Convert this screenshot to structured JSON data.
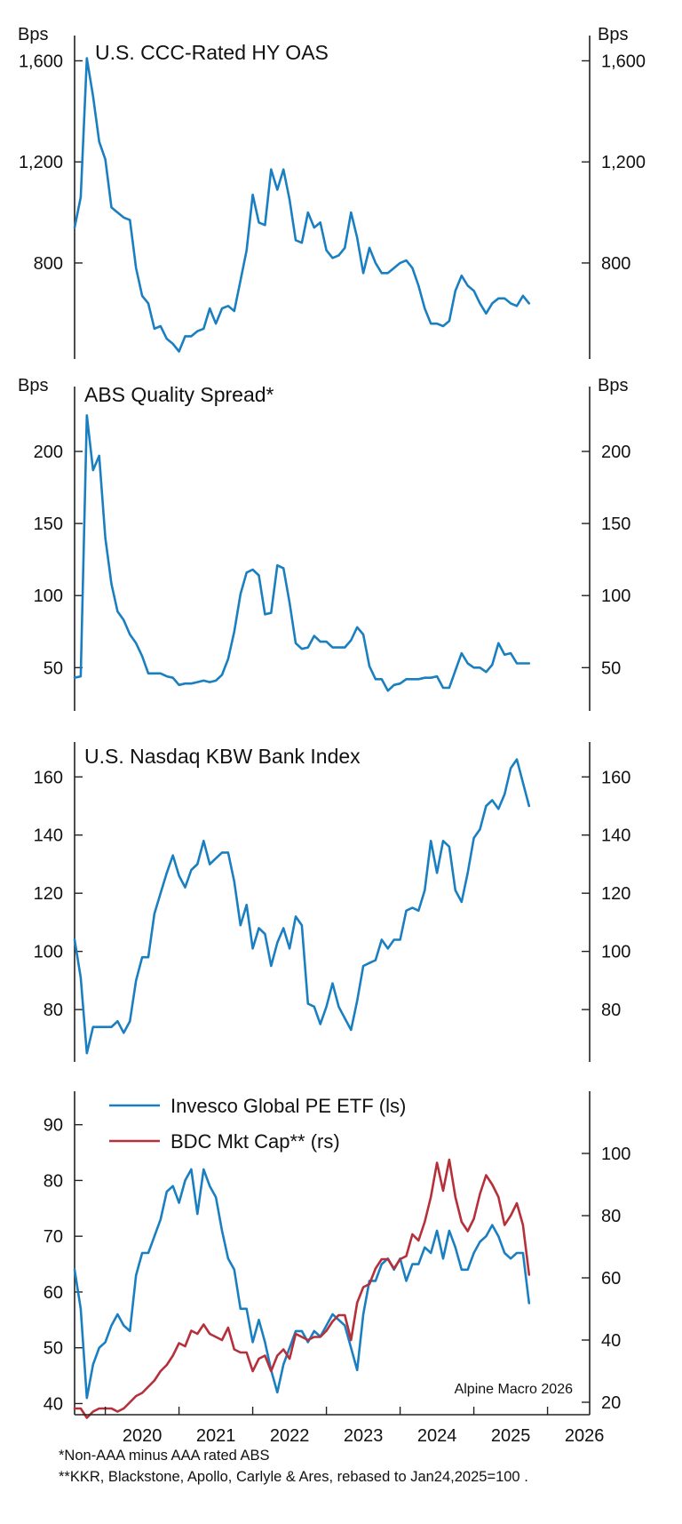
{
  "colors": {
    "blue": "#1a7fc1",
    "red": "#b5303a",
    "axis": "#222222"
  },
  "x_ticks": [
    "2020",
    "2021",
    "2022",
    "2023",
    "2024",
    "2025",
    "2026"
  ],
  "notes": {
    "note1": "*Non-AAA minus AAA rated ABS",
    "note2": "**KKR, Blackstone, Apollo, Carlyle & Ares, rebased to Jan24,2025=100 ."
  },
  "chart_data": [
    {
      "type": "line",
      "title": "U.S. CCC-Rated HY OAS",
      "unit_left": "Bps",
      "unit_right": "Bps",
      "ylim": [
        420,
        1700
      ],
      "yticks": [
        800,
        1200,
        1600
      ],
      "ytick_labels": [
        "800",
        "1,200",
        "1,600"
      ],
      "x_start": "2019-08",
      "series": [
        {
          "color": "blue",
          "values": [
            940,
            1060,
            1610,
            1460,
            1280,
            1210,
            1020,
            1000,
            980,
            970,
            780,
            670,
            640,
            540,
            550,
            500,
            480,
            450,
            510,
            510,
            530,
            540,
            620,
            560,
            620,
            630,
            610,
            730,
            850,
            1070,
            960,
            950,
            1170,
            1090,
            1170,
            1050,
            890,
            880,
            1000,
            940,
            960,
            850,
            820,
            830,
            860,
            1000,
            900,
            760,
            860,
            800,
            760,
            760,
            780,
            800,
            810,
            780,
            710,
            620,
            560,
            560,
            550,
            570,
            690,
            750,
            710,
            690,
            640,
            600,
            640,
            660,
            660,
            640,
            630,
            670,
            640
          ]
        }
      ]
    },
    {
      "type": "line",
      "title": "ABS Quality Spread*",
      "unit_left": "Bps",
      "unit_right": "Bps",
      "ylim": [
        20,
        245
      ],
      "yticks": [
        50,
        100,
        150,
        200
      ],
      "ytick_labels": [
        "50",
        "100",
        "150",
        "200"
      ],
      "x_start": "2019-08",
      "series": [
        {
          "color": "blue",
          "values": [
            43,
            44,
            225,
            187,
            197,
            140,
            108,
            89,
            83,
            73,
            67,
            58,
            46,
            46,
            46,
            44,
            43,
            38,
            39,
            39,
            40,
            41,
            40,
            41,
            45,
            56,
            75,
            101,
            116,
            118,
            114,
            87,
            88,
            121,
            119,
            95,
            67,
            63,
            64,
            72,
            68,
            68,
            64,
            64,
            64,
            69,
            78,
            73,
            51,
            42,
            42,
            34,
            38,
            39,
            42,
            42,
            42,
            43,
            43,
            44,
            36,
            36,
            48,
            60,
            53,
            50,
            50,
            47,
            52,
            67,
            59,
            60,
            53,
            53,
            53
          ]
        }
      ]
    },
    {
      "type": "line",
      "title": "U.S. Nasdaq KBW Bank Index",
      "ylim": [
        62,
        172
      ],
      "yticks": [
        80,
        100,
        120,
        140,
        160
      ],
      "ytick_labels": [
        "80",
        "100",
        "120",
        "140",
        "160"
      ],
      "x_start": "2019-08",
      "series": [
        {
          "color": "blue",
          "values": [
            104,
            91,
            65,
            74,
            74,
            74,
            74,
            76,
            72,
            76,
            90,
            98,
            98,
            113,
            120,
            127,
            133,
            126,
            122,
            128,
            130,
            138,
            130,
            132,
            134,
            134,
            124,
            109,
            116,
            101,
            108,
            106,
            95,
            103,
            108,
            101,
            112,
            109,
            82,
            81,
            75,
            81,
            89,
            81,
            77,
            73,
            83,
            95,
            96,
            97,
            104,
            101,
            104,
            104,
            114,
            115,
            114,
            121,
            138,
            127,
            138,
            136,
            121,
            117,
            127,
            139,
            142,
            150,
            152,
            149,
            154,
            163,
            166,
            158,
            150
          ]
        }
      ]
    },
    {
      "type": "line",
      "ylim_left": [
        38,
        96
      ],
      "ylim_right": [
        16,
        120
      ],
      "yticks_left": [
        40,
        50,
        60,
        70,
        80,
        90
      ],
      "yticks_right": [
        20,
        40,
        60,
        80,
        100
      ],
      "x_start": "2019-08",
      "annotation": "Alpine Macro 2026",
      "legend": "top-left",
      "series": [
        {
          "name": "Invesco Global PE ETF (ls)",
          "axis": "left",
          "color": "blue",
          "values": [
            64,
            57,
            41,
            47,
            50,
            51,
            54,
            56,
            54,
            53,
            63,
            67,
            67,
            70,
            73,
            78,
            79,
            76,
            80,
            82,
            74,
            82,
            79,
            77,
            71,
            66,
            64,
            57,
            57,
            51,
            55,
            51,
            46,
            42,
            47,
            50,
            53,
            53,
            51,
            53,
            52,
            54,
            56,
            55,
            54,
            50,
            46,
            56,
            62,
            62,
            65,
            66,
            64,
            66,
            62,
            65,
            65,
            68,
            67,
            71,
            66,
            71,
            68,
            64,
            64,
            67,
            69,
            70,
            72,
            70,
            67,
            66,
            67,
            67,
            58
          ]
        },
        {
          "name": "BDC Mkt Cap** (rs)",
          "axis": "right",
          "color": "red",
          "values": [
            18,
            18,
            15,
            17,
            18,
            18,
            18,
            17,
            18,
            20,
            22,
            23,
            25,
            27,
            30,
            32,
            35,
            39,
            38,
            43,
            42,
            45,
            42,
            41,
            40,
            44,
            37,
            36,
            36,
            30,
            34,
            35,
            30,
            35,
            37,
            34,
            42,
            41,
            40,
            41,
            41,
            43,
            46,
            48,
            48,
            40,
            52,
            57,
            58,
            63,
            66,
            66,
            63,
            66,
            67,
            74,
            72,
            78,
            86,
            97,
            88,
            98,
            86,
            78,
            75,
            79,
            87,
            93,
            90,
            86,
            77,
            80,
            84,
            77,
            61
          ]
        }
      ]
    }
  ]
}
